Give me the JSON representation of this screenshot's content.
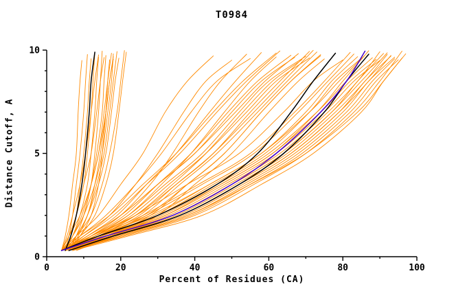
{
  "chart_data": {
    "type": "line",
    "title": "T0984",
    "xlabel": "Percent of Residues (CA)",
    "ylabel": "Distance Cutoff, A",
    "xlim": [
      0,
      100
    ],
    "ylim": [
      0,
      10
    ],
    "x_ticks": [
      0,
      20,
      40,
      60,
      80,
      100
    ],
    "x_minor_step": 10,
    "y_ticks": [
      0,
      5,
      10
    ],
    "y_minor_step": 1,
    "grid": false,
    "legend": "none",
    "colors": {
      "orange": "#FF8A00",
      "black": "#000000",
      "blue": "#4400CC"
    },
    "y_anchors": [
      0.3,
      1,
      2,
      3.5,
      5,
      7,
      8.5,
      10
    ],
    "series": {
      "orange_models_x": [
        [
          4,
          5,
          6,
          7,
          8,
          8.5,
          9,
          9.5
        ],
        [
          5,
          6,
          7,
          8,
          9,
          10,
          10.5,
          11
        ],
        [
          5,
          6.5,
          8,
          9,
          10,
          11,
          11.5,
          12
        ],
        [
          4,
          6,
          8,
          10,
          11,
          12,
          12.5,
          13
        ],
        [
          5,
          7,
          9,
          11,
          12,
          13,
          13.5,
          14
        ],
        [
          6,
          8,
          10,
          12,
          13,
          14,
          14.5,
          15
        ],
        [
          5,
          7,
          10,
          12,
          13.5,
          15,
          15.5,
          16
        ],
        [
          6,
          9,
          12,
          14,
          15,
          16,
          16.5,
          17
        ],
        [
          4,
          7,
          10,
          13,
          15,
          16.5,
          17.5,
          18
        ],
        [
          5,
          8,
          11,
          14,
          16,
          17.5,
          18.5,
          19.5
        ],
        [
          6,
          9,
          13,
          16,
          18,
          19.5,
          20.5,
          21.5
        ],
        [
          4,
          6,
          9,
          12,
          14,
          16,
          17,
          18
        ],
        [
          5,
          8,
          12,
          15,
          17,
          19,
          20,
          21
        ],
        [
          4,
          5.5,
          7,
          9,
          10.5,
          12,
          13,
          14
        ],
        [
          6,
          8,
          11,
          13,
          14.5,
          16,
          17,
          18
        ],
        [
          5,
          7,
          9.5,
          12,
          14,
          15.5,
          16.5,
          17.5
        ],
        [
          4,
          6,
          8,
          10,
          12,
          13.5,
          14.5,
          15.5
        ],
        [
          6,
          8.5,
          11,
          13.5,
          15.5,
          17,
          18,
          19
        ],
        [
          4,
          8,
          14,
          20,
          26,
          32,
          38,
          45
        ],
        [
          5,
          10,
          17,
          24,
          30,
          37,
          43,
          50
        ],
        [
          6,
          12,
          20,
          28,
          34,
          41,
          47,
          54
        ],
        [
          4,
          9,
          16,
          24,
          31,
          39,
          46,
          55
        ],
        [
          5,
          11,
          19,
          27,
          35,
          44,
          51,
          58
        ],
        [
          6,
          13,
          22,
          31,
          39,
          48,
          55,
          62
        ],
        [
          4,
          10,
          18,
          27,
          36,
          46,
          54,
          63
        ],
        [
          5,
          12,
          21,
          30,
          39,
          49,
          57,
          66
        ],
        [
          6,
          14,
          24,
          34,
          43,
          53,
          61,
          69
        ],
        [
          4,
          11,
          20,
          30,
          40,
          51,
          59,
          68
        ],
        [
          5,
          13,
          23,
          33,
          43,
          54,
          62,
          71
        ],
        [
          7,
          15,
          26,
          36,
          46,
          57,
          65,
          73
        ],
        [
          4,
          12,
          22,
          32,
          42,
          52,
          60,
          70
        ],
        [
          5,
          14,
          25,
          35,
          45,
          56,
          64,
          72
        ],
        [
          6,
          16,
          28,
          38,
          48,
          58,
          66,
          74
        ],
        [
          8,
          18,
          30,
          40,
          50,
          60,
          68,
          75
        ],
        [
          4,
          9,
          17,
          26,
          35,
          45,
          53,
          62
        ],
        [
          5,
          11,
          20,
          30,
          40,
          50,
          58,
          67
        ],
        [
          6,
          13,
          24,
          35,
          45,
          55,
          63,
          71
        ],
        [
          7,
          15,
          27,
          38,
          48,
          58,
          66,
          74
        ],
        [
          4,
          12,
          24,
          38,
          52,
          64,
          72,
          80
        ],
        [
          5,
          14,
          27,
          42,
          56,
          68,
          76,
          83
        ],
        [
          6,
          16,
          30,
          45,
          59,
          71,
          78,
          85
        ],
        [
          4,
          13,
          26,
          41,
          55,
          67,
          75,
          82
        ],
        [
          5,
          15,
          29,
          44,
          58,
          70,
          77,
          84
        ],
        [
          6,
          17,
          32,
          47,
          61,
          73,
          80,
          87
        ],
        [
          4,
          14,
          28,
          44,
          58,
          71,
          79,
          86
        ],
        [
          5,
          16,
          31,
          47,
          61,
          74,
          82,
          89
        ],
        [
          6,
          18,
          34,
          50,
          64,
          77,
          84,
          91
        ],
        [
          4,
          15,
          30,
          46,
          60,
          73,
          81,
          88
        ],
        [
          5,
          17,
          33,
          49,
          63,
          76,
          84,
          90
        ],
        [
          6,
          19,
          36,
          52,
          66,
          79,
          86,
          93
        ],
        [
          4,
          16,
          32,
          48,
          62,
          75,
          83,
          90
        ],
        [
          5,
          18,
          35,
          51,
          65,
          78,
          86,
          92
        ],
        [
          7,
          20,
          38,
          54,
          68,
          81,
          88,
          94
        ],
        [
          4,
          17,
          34,
          50,
          64,
          77,
          85,
          92
        ],
        [
          5,
          19,
          37,
          53,
          67,
          80,
          87,
          94
        ],
        [
          6,
          21,
          40,
          56,
          70,
          83,
          90,
          96
        ],
        [
          4,
          18,
          36,
          52,
          66,
          79,
          87,
          93
        ],
        [
          5,
          20,
          39,
          55,
          69,
          82,
          89,
          95
        ],
        [
          7,
          22,
          42,
          58,
          72,
          85,
          91,
          97
        ],
        [
          6,
          20,
          38,
          55,
          70,
          84,
          91,
          96
        ]
      ],
      "black_reference_x": [
        [
          5,
          6.5,
          8,
          9.5,
          10.5,
          11.5,
          12,
          13
        ],
        [
          4,
          14,
          30,
          46,
          57,
          66,
          72,
          78
        ],
        [
          6,
          18,
          36,
          52,
          64,
          75,
          81,
          87
        ]
      ],
      "blue_reference_x": [
        [
          4,
          16,
          34,
          50,
          62,
          74,
          81,
          86
        ]
      ]
    }
  }
}
